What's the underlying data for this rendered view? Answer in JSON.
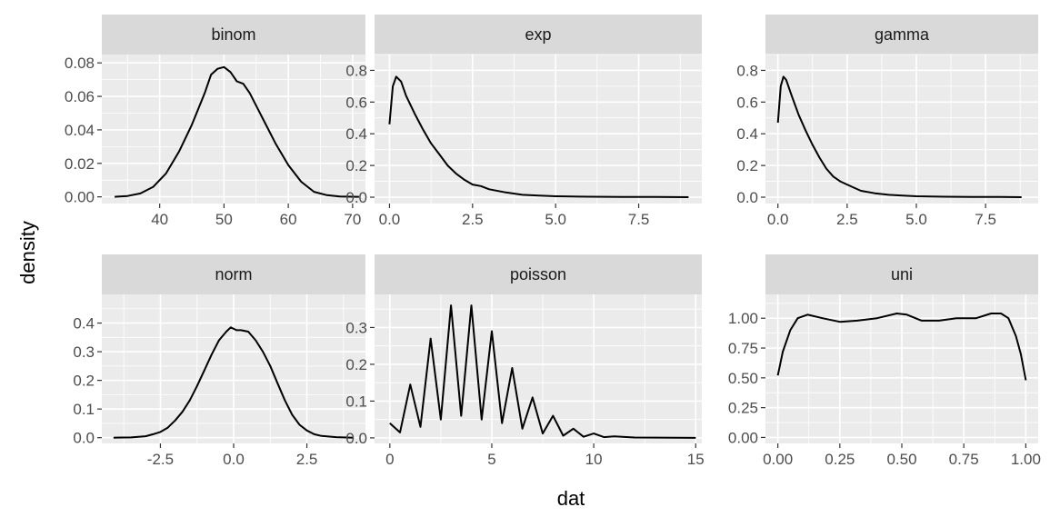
{
  "chart_data": {
    "type": "line",
    "xlabel": "dat",
    "ylabel": "density",
    "grid": true,
    "facets": [
      {
        "name": "binom",
        "xlim": [
          31,
          72
        ],
        "ylim": [
          -0.004,
          0.085
        ],
        "x_ticks": [
          40,
          50,
          60,
          70
        ],
        "x_tick_labels": [
          "40",
          "50",
          "60",
          "70"
        ],
        "y_ticks": [
          0,
          0.02,
          0.04,
          0.06,
          0.08
        ],
        "y_tick_labels": [
          "0.00",
          "0.02",
          "0.04",
          "0.06",
          "0.08"
        ],
        "points": [
          [
            33,
            0
          ],
          [
            35,
            0.0005
          ],
          [
            37,
            0.002
          ],
          [
            39,
            0.006
          ],
          [
            41,
            0.014
          ],
          [
            43,
            0.027
          ],
          [
            45,
            0.043
          ],
          [
            47,
            0.062
          ],
          [
            48,
            0.073
          ],
          [
            49,
            0.0765
          ],
          [
            50,
            0.0775
          ],
          [
            51,
            0.0745
          ],
          [
            52,
            0.069
          ],
          [
            53,
            0.0675
          ],
          [
            54,
            0.062
          ],
          [
            56,
            0.047
          ],
          [
            58,
            0.032
          ],
          [
            60,
            0.019
          ],
          [
            62,
            0.009
          ],
          [
            64,
            0.003
          ],
          [
            66,
            0.001
          ],
          [
            68,
            0.0002
          ],
          [
            71,
            0
          ]
        ]
      },
      {
        "name": "exp",
        "xlim": [
          -0.45,
          9.4
        ],
        "ylim": [
          -0.04,
          0.9
        ],
        "x_ticks": [
          0,
          2.5,
          5,
          7.5
        ],
        "x_tick_labels": [
          "0.0",
          "2.5",
          "5.0",
          "7.5"
        ],
        "y_ticks": [
          0,
          0.2,
          0.4,
          0.6,
          0.8
        ],
        "y_tick_labels": [
          "0.0",
          "0.2",
          "0.4",
          "0.6",
          "0.8"
        ],
        "points": [
          [
            0,
            0.46
          ],
          [
            0.1,
            0.7
          ],
          [
            0.2,
            0.76
          ],
          [
            0.35,
            0.73
          ],
          [
            0.5,
            0.64
          ],
          [
            0.75,
            0.53
          ],
          [
            1,
            0.43
          ],
          [
            1.25,
            0.34
          ],
          [
            1.5,
            0.27
          ],
          [
            1.75,
            0.2
          ],
          [
            2,
            0.15
          ],
          [
            2.25,
            0.11
          ],
          [
            2.5,
            0.08
          ],
          [
            2.75,
            0.07
          ],
          [
            3,
            0.05
          ],
          [
            3.5,
            0.03
          ],
          [
            4,
            0.015
          ],
          [
            4.5,
            0.01
          ],
          [
            5,
            0.006
          ],
          [
            5.5,
            0.004
          ],
          [
            6,
            0.003
          ],
          [
            7,
            0.002
          ],
          [
            8,
            0.001
          ],
          [
            9,
            0
          ]
        ]
      },
      {
        "name": "gamma",
        "xlim": [
          -0.45,
          9.4
        ],
        "ylim": [
          -0.04,
          0.9
        ],
        "x_ticks": [
          0,
          2.5,
          5,
          7.5
        ],
        "x_tick_labels": [
          "0.0",
          "2.5",
          "5.0",
          "7.5"
        ],
        "y_ticks": [
          0,
          0.2,
          0.4,
          0.6,
          0.8
        ],
        "y_tick_labels": [
          "0.0",
          "0.2",
          "0.4",
          "0.6",
          "0.8"
        ],
        "points": [
          [
            0,
            0.47
          ],
          [
            0.1,
            0.7
          ],
          [
            0.2,
            0.76
          ],
          [
            0.3,
            0.74
          ],
          [
            0.5,
            0.64
          ],
          [
            0.75,
            0.52
          ],
          [
            1,
            0.42
          ],
          [
            1.25,
            0.33
          ],
          [
            1.5,
            0.25
          ],
          [
            1.75,
            0.18
          ],
          [
            2,
            0.13
          ],
          [
            2.25,
            0.1
          ],
          [
            2.5,
            0.08
          ],
          [
            2.75,
            0.06
          ],
          [
            3,
            0.04
          ],
          [
            3.5,
            0.025
          ],
          [
            4,
            0.015
          ],
          [
            4.5,
            0.01
          ],
          [
            5,
            0.006
          ],
          [
            5.5,
            0.004
          ],
          [
            6,
            0.003
          ],
          [
            7,
            0.002
          ],
          [
            8,
            0.001
          ],
          [
            8.8,
            0
          ]
        ]
      },
      {
        "name": "norm",
        "xlim": [
          -4.5,
          4.5
        ],
        "ylim": [
          -0.02,
          0.5
        ],
        "x_ticks": [
          -2.5,
          0,
          2.5
        ],
        "x_tick_labels": [
          "-2.5",
          "0.0",
          "2.5"
        ],
        "y_ticks": [
          0,
          0.1,
          0.2,
          0.3,
          0.4
        ],
        "y_tick_labels": [
          "0.0",
          "0.1",
          "0.2",
          "0.3",
          "0.4"
        ],
        "points": [
          [
            -4.1,
            0
          ],
          [
            -3.5,
            0.001
          ],
          [
            -3,
            0.005
          ],
          [
            -2.75,
            0.012
          ],
          [
            -2.5,
            0.02
          ],
          [
            -2.25,
            0.035
          ],
          [
            -2,
            0.06
          ],
          [
            -1.75,
            0.09
          ],
          [
            -1.5,
            0.13
          ],
          [
            -1.25,
            0.18
          ],
          [
            -1,
            0.235
          ],
          [
            -0.75,
            0.29
          ],
          [
            -0.5,
            0.34
          ],
          [
            -0.25,
            0.37
          ],
          [
            -0.1,
            0.385
          ],
          [
            0.1,
            0.375
          ],
          [
            0.25,
            0.375
          ],
          [
            0.5,
            0.37
          ],
          [
            0.75,
            0.34
          ],
          [
            1,
            0.3
          ],
          [
            1.25,
            0.25
          ],
          [
            1.5,
            0.19
          ],
          [
            1.75,
            0.13
          ],
          [
            2,
            0.08
          ],
          [
            2.25,
            0.045
          ],
          [
            2.5,
            0.025
          ],
          [
            2.75,
            0.012
          ],
          [
            3,
            0.006
          ],
          [
            3.5,
            0.002
          ],
          [
            4.1,
            0
          ]
        ]
      },
      {
        "name": "poisson",
        "xlim": [
          -0.75,
          15.3
        ],
        "ylim": [
          -0.015,
          0.39
        ],
        "x_ticks": [
          0,
          5,
          10,
          15
        ],
        "x_tick_labels": [
          "0",
          "5",
          "10",
          "15"
        ],
        "y_ticks": [
          0,
          0.1,
          0.2,
          0.3
        ],
        "y_tick_labels": [
          "0.0",
          "0.1",
          "0.2",
          "0.3"
        ],
        "points": [
          [
            0,
            0.04
          ],
          [
            0.5,
            0.015
          ],
          [
            1,
            0.145
          ],
          [
            1.5,
            0.03
          ],
          [
            2,
            0.27
          ],
          [
            2.5,
            0.05
          ],
          [
            3,
            0.36
          ],
          [
            3.5,
            0.06
          ],
          [
            4,
            0.36
          ],
          [
            4.5,
            0.05
          ],
          [
            5,
            0.29
          ],
          [
            5.5,
            0.04
          ],
          [
            6,
            0.19
          ],
          [
            6.5,
            0.025
          ],
          [
            7,
            0.11
          ],
          [
            7.5,
            0.012
          ],
          [
            8,
            0.06
          ],
          [
            8.5,
            0.006
          ],
          [
            9,
            0.025
          ],
          [
            9.5,
            0.003
          ],
          [
            10,
            0.012
          ],
          [
            10.5,
            0.002
          ],
          [
            11,
            0.004
          ],
          [
            12,
            0.001
          ],
          [
            15,
            0
          ]
        ]
      },
      {
        "name": "uni",
        "xlim": [
          -0.05,
          1.05
        ],
        "ylim": [
          -0.05,
          1.2
        ],
        "x_ticks": [
          0,
          0.25,
          0.5,
          0.75,
          1
        ],
        "x_tick_labels": [
          "0.00",
          "0.25",
          "0.50",
          "0.75",
          "1.00"
        ],
        "y_ticks": [
          0,
          0.25,
          0.5,
          0.75,
          1
        ],
        "y_tick_labels": [
          "0.00",
          "0.25",
          "0.50",
          "0.75",
          "1.00"
        ],
        "points": [
          [
            0,
            0.52
          ],
          [
            0.02,
            0.72
          ],
          [
            0.05,
            0.9
          ],
          [
            0.08,
            1
          ],
          [
            0.12,
            1.03
          ],
          [
            0.18,
            1
          ],
          [
            0.25,
            0.97
          ],
          [
            0.32,
            0.98
          ],
          [
            0.4,
            1
          ],
          [
            0.48,
            1.04
          ],
          [
            0.52,
            1.03
          ],
          [
            0.58,
            0.98
          ],
          [
            0.65,
            0.98
          ],
          [
            0.72,
            1
          ],
          [
            0.8,
            1
          ],
          [
            0.86,
            1.04
          ],
          [
            0.9,
            1.04
          ],
          [
            0.93,
            1
          ],
          [
            0.96,
            0.85
          ],
          [
            0.98,
            0.7
          ],
          [
            1,
            0.48
          ]
        ]
      }
    ]
  }
}
